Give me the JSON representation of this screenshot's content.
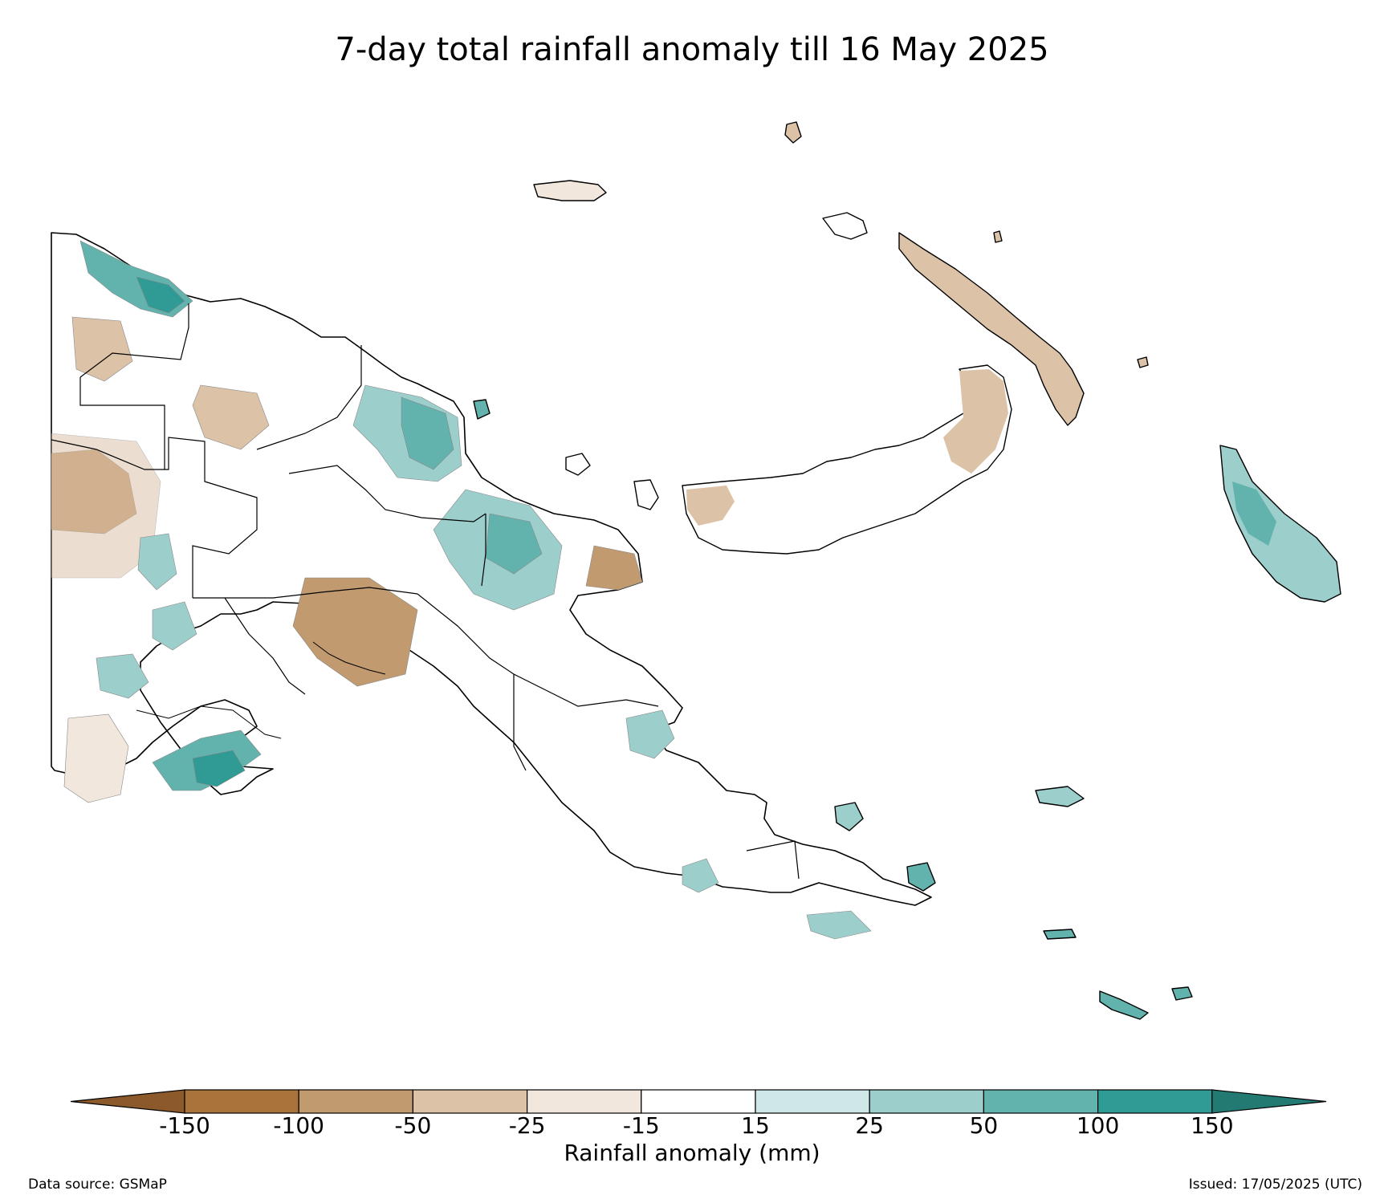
{
  "title": "7-day total rainfall anomaly till 16 May 2025",
  "colorbar": {
    "label": "Rainfall anomaly (mm)",
    "ticks": [
      "-150",
      "-100",
      "-50",
      "-25",
      "-15",
      "15",
      "25",
      "50",
      "100",
      "150"
    ],
    "colors": {
      "extend_low": "#8c5a2a",
      "bins": [
        "#a9743c",
        "#c29a70",
        "#dcc3a8",
        "#f1e7dd",
        "#ffffff",
        "#cfe7e6",
        "#9ccfcc",
        "#62b3ae",
        "#2f9b94"
      ],
      "extend_high": "#237a73"
    }
  },
  "footer": {
    "data_source": "Data source: GSMaP",
    "issued": "Issued: 17/05/2025 (UTC)"
  }
}
